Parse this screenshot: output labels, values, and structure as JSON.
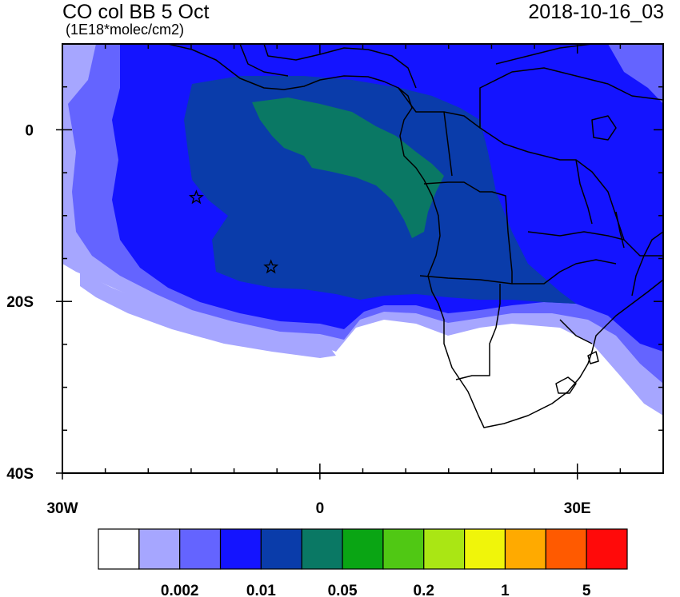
{
  "header": {
    "title": "CO col BB 5 Oct",
    "units": "(1E18*molec/cm2)",
    "datetime": "2018-10-16_03"
  },
  "axes": {
    "y_ticks": [
      {
        "value": 0,
        "label": "0"
      },
      {
        "value": -20,
        "label": "20S"
      },
      {
        "value": -40,
        "label": "40S"
      }
    ],
    "x_ticks": [
      {
        "value": -30,
        "label": "30W"
      },
      {
        "value": 0,
        "label": "0"
      },
      {
        "value": 30,
        "label": "30E"
      }
    ],
    "lon_range": [
      -30,
      40
    ],
    "lat_range": [
      -40,
      10
    ]
  },
  "colorbar": {
    "colors": [
      "#ffffff",
      "#a6a6ff",
      "#6464ff",
      "#1414ff",
      "#0a3caa",
      "#0a7864",
      "#0aa514",
      "#50c814",
      "#aae614",
      "#f0f50a",
      "#ffaa00",
      "#ff5a00",
      "#ff0a0a"
    ],
    "labels": [
      {
        "boundary": 2,
        "text": "0.002"
      },
      {
        "boundary": 4,
        "text": "0.01"
      },
      {
        "boundary": 6,
        "text": "0.05"
      },
      {
        "boundary": 8,
        "text": "0.2"
      },
      {
        "boundary": 10,
        "text": "1"
      },
      {
        "boundary": 12,
        "text": "5"
      }
    ]
  },
  "markers": [
    {
      "name": "star-1",
      "lon": -14.4,
      "lat": -7.9
    },
    {
      "name": "star-2",
      "lon": -5.7,
      "lat": -16.0
    }
  ],
  "colors": {
    "level_white": "#ffffff",
    "level_lightblue": "#a6a6ff",
    "level_mediumblue": "#6464ff",
    "level_blue": "#1414ff",
    "level_darkblue": "#0a3caa",
    "level_teal": "#0a7864"
  }
}
